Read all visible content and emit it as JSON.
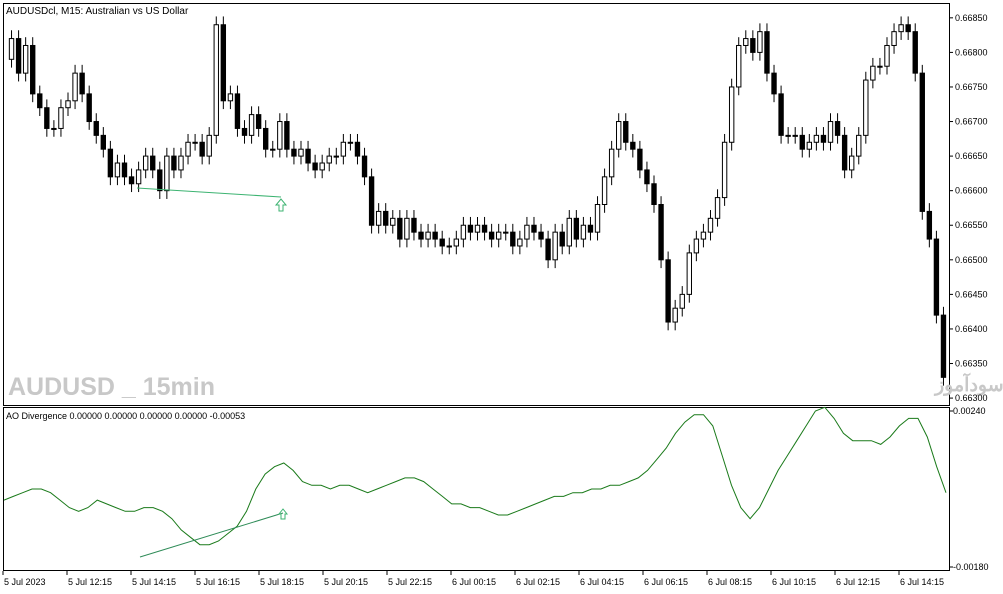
{
  "header": {
    "symbol_label": "AUDUSDcl, M15:  Australian vs US Dollar"
  },
  "watermarks": {
    "left": "AUDUSD _ 15min",
    "right": "انتشار در سایت سودآموز"
  },
  "indicator": {
    "label": "AO Divergence 0.00000 0.00000 0.00000 0.00000 -0.00053",
    "axis": {
      "min": -0.0018,
      "max": 0.0024,
      "labels": [
        "0.00240",
        "-0.00180"
      ]
    }
  },
  "chart_data": [
    {
      "type": "candlestick",
      "title": "AUDUSDcl, M15:  Australian vs US Dollar",
      "ylim": [
        0.6629,
        0.6687
      ],
      "y_tick_labels": [
        "0.66850",
        "0.66800",
        "0.66750",
        "0.66700",
        "0.66650",
        "0.66600",
        "0.66550",
        "0.66500",
        "0.66450",
        "0.66400",
        "0.66350",
        "0.66300"
      ],
      "x_tick_labels": [
        "5 Jul 2023",
        "5 Jul 12:15",
        "5 Jul 14:15",
        "5 Jul 16:15",
        "5 Jul 18:15",
        "5 Jul 20:15",
        "5 Jul 22:15",
        "6 Jul 00:15",
        "6 Jul 02:15",
        "6 Jul 04:15",
        "6 Jul 06:15",
        "6 Jul 08:15",
        "6 Jul 10:15",
        "6 Jul 12:15",
        "6 Jul 14:15"
      ],
      "closes": [
        0.6682,
        0.6677,
        0.6681,
        0.6674,
        0.6672,
        0.6669,
        0.6669,
        0.6672,
        0.6673,
        0.6677,
        0.6674,
        0.667,
        0.6668,
        0.6666,
        0.6662,
        0.6664,
        0.6662,
        0.6661,
        0.6663,
        0.6665,
        0.6663,
        0.666,
        0.6665,
        0.6663,
        0.6665,
        0.6667,
        0.6667,
        0.6665,
        0.6668,
        0.6684,
        0.6673,
        0.6674,
        0.6669,
        0.6668,
        0.6671,
        0.6669,
        0.6666,
        0.6666,
        0.667,
        0.6666,
        0.6665,
        0.6666,
        0.6664,
        0.6663,
        0.6664,
        0.6665,
        0.6665,
        0.6667,
        0.6667,
        0.6665,
        0.6662,
        0.6655,
        0.6657,
        0.6655,
        0.6656,
        0.6653,
        0.6656,
        0.6654,
        0.6653,
        0.6654,
        0.6653,
        0.6652,
        0.6652,
        0.6653,
        0.6655,
        0.6654,
        0.6655,
        0.6654,
        0.6653,
        0.6654,
        0.6654,
        0.6652,
        0.6653,
        0.6655,
        0.6654,
        0.6653,
        0.665,
        0.6654,
        0.6652,
        0.6656,
        0.6653,
        0.6655,
        0.6654,
        0.6658,
        0.6662,
        0.6666,
        0.667,
        0.6667,
        0.6666,
        0.6663,
        0.6661,
        0.6658,
        0.665,
        0.6641,
        0.6643,
        0.6645,
        0.6651,
        0.6653,
        0.6654,
        0.6656,
        0.6659,
        0.6667,
        0.6675,
        0.6681,
        0.6682,
        0.668,
        0.6683,
        0.6677,
        0.6674,
        0.6668,
        0.6668,
        0.6668,
        0.6666,
        0.6667,
        0.6668,
        0.6667,
        0.667,
        0.6668,
        0.6663,
        0.6665,
        0.6668,
        0.6676,
        0.6678,
        0.6678,
        0.6681,
        0.6683,
        0.6684,
        0.6683,
        0.6677,
        0.6657,
        0.6653,
        0.6642,
        0.6633
      ]
    },
    {
      "type": "line",
      "title": "AO Divergence",
      "ylim": [
        -0.0018,
        0.0024
      ],
      "values": [
        0.0,
        0.0001,
        0.0002,
        0.0003,
        0.0003,
        0.0002,
        0.0,
        -0.0002,
        -0.0003,
        -0.0002,
        0.0,
        -0.0001,
        -0.0002,
        -0.0003,
        -0.0003,
        -0.0002,
        -0.0002,
        -0.0003,
        -0.0005,
        -0.0008,
        -0.001,
        -0.0012,
        -0.0012,
        -0.0011,
        -0.0009,
        -0.0007,
        -0.0003,
        0.0003,
        0.0007,
        0.0009,
        0.001,
        0.0008,
        0.0005,
        0.0004,
        0.0004,
        0.0003,
        0.0004,
        0.0004,
        0.0003,
        0.0002,
        0.0003,
        0.0004,
        0.0005,
        0.0006,
        0.0006,
        0.0005,
        0.0003,
        0.0001,
        -0.0001,
        -0.0001,
        -0.0002,
        -0.0002,
        -0.0003,
        -0.0004,
        -0.0004,
        -0.0003,
        -0.0002,
        -0.0001,
        0.0,
        0.0001,
        0.0001,
        0.0002,
        0.0002,
        0.0003,
        0.0003,
        0.0004,
        0.0004,
        0.0005,
        0.0006,
        0.0008,
        0.0011,
        0.0014,
        0.0018,
        0.0021,
        0.0023,
        0.0023,
        0.002,
        0.0012,
        0.0004,
        -0.0002,
        -0.0005,
        -0.0002,
        0.0003,
        0.0008,
        0.0012,
        0.0016,
        0.002,
        0.0024,
        0.0025,
        0.0022,
        0.0018,
        0.0016,
        0.0016,
        0.0016,
        0.0015,
        0.0017,
        0.002,
        0.0022,
        0.0022,
        0.0017,
        0.0009,
        0.0002
      ]
    }
  ]
}
